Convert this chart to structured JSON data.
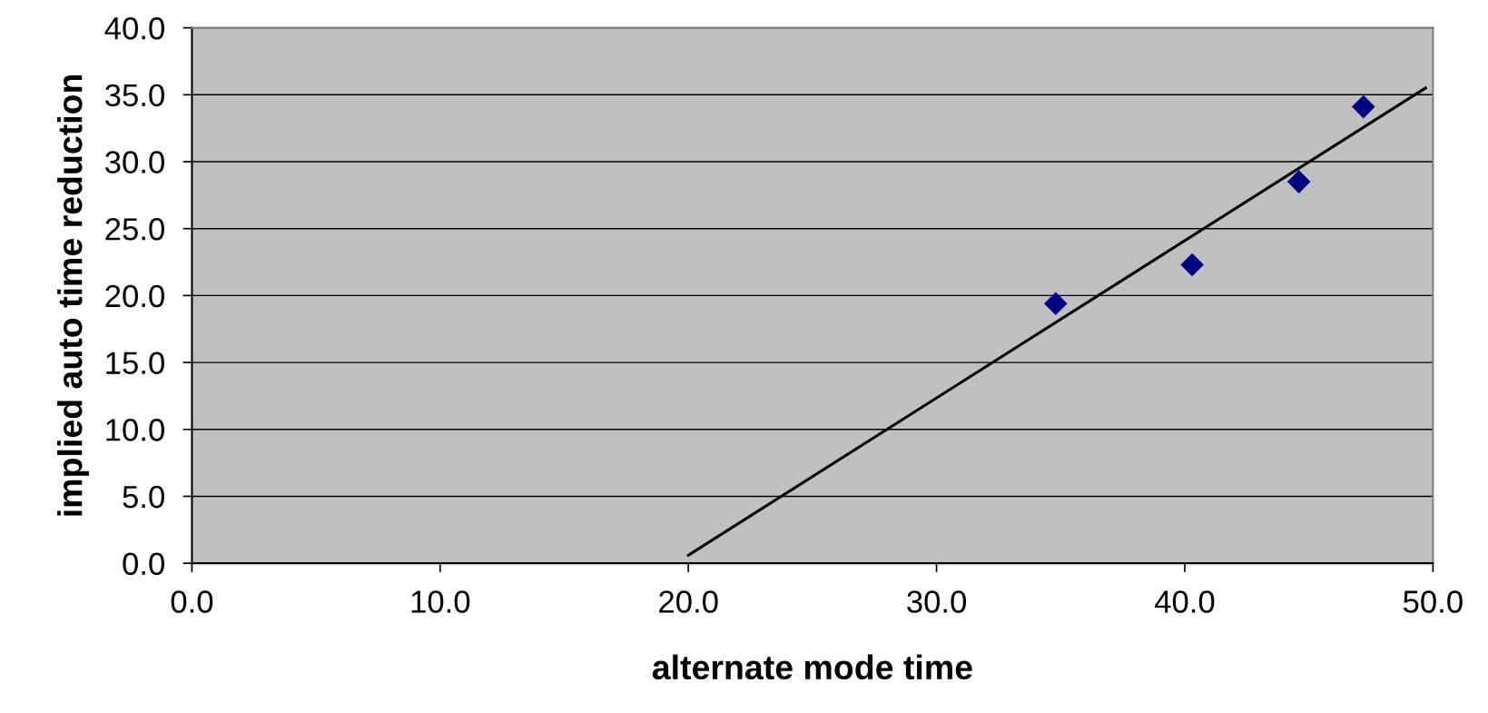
{
  "chart_data": {
    "type": "scatter",
    "xlabel": "alternate mode time",
    "ylabel": "implied auto time reduction",
    "series": [
      {
        "color": "#000080",
        "marker": "diamond",
        "x": [
          34.8,
          40.3,
          44.6,
          47.2
        ],
        "values": [
          19.4,
          22.3,
          28.5,
          34.1
        ]
      },
      {
        "type": "line",
        "color": "#000000",
        "marker": "none",
        "line_style": "solid",
        "x": [
          20.0,
          49.7
        ],
        "values": [
          0.6,
          35.5
        ]
      }
    ],
    "xlim": [
      0,
      50
    ],
    "ylim": [
      0,
      40
    ],
    "xticks": [
      {
        "value": 0,
        "label": "0.0"
      },
      {
        "value": 10,
        "label": "10.0"
      },
      {
        "value": 20,
        "label": "20.0"
      },
      {
        "value": 30,
        "label": "30.0"
      },
      {
        "value": 40,
        "label": "40.0"
      },
      {
        "value": 50,
        "label": "50.0"
      }
    ],
    "yticks": [
      {
        "value": 0,
        "label": "0.0"
      },
      {
        "value": 5,
        "label": "5.0"
      },
      {
        "value": 10,
        "label": "10.0"
      },
      {
        "value": 15,
        "label": "15.0"
      },
      {
        "value": 20,
        "label": "20.0"
      },
      {
        "value": 25,
        "label": "25.0"
      },
      {
        "value": 30,
        "label": "30.0"
      },
      {
        "value": 35,
        "label": "35.0"
      },
      {
        "value": 40,
        "label": "40.0"
      }
    ],
    "grid": "y",
    "legend": false
  }
}
